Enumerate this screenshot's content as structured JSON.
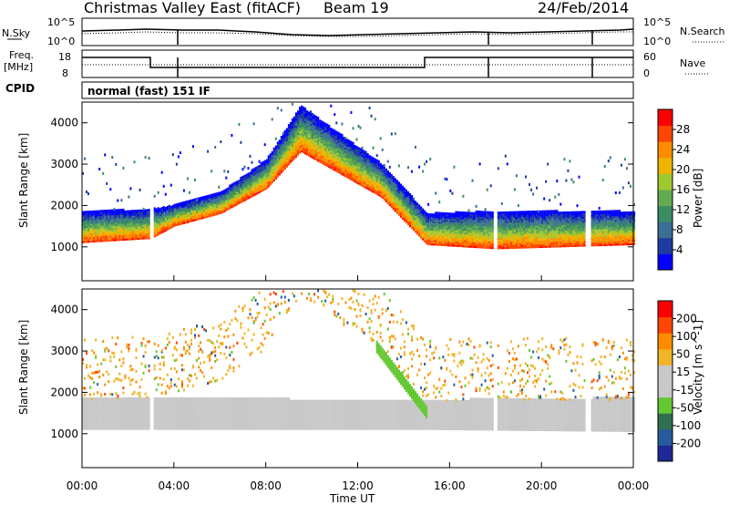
{
  "header": {
    "site": "Christmas Valley East (fitACF)",
    "beam": "Beam 19",
    "date": "24/Feb/2014",
    "cpid_label": "CPID",
    "mode": "normal (fast) 151 IF"
  },
  "top_panels": {
    "nsky_label": "N.Sky",
    "nsky_ticks": [
      "10^5",
      "10^0"
    ],
    "nsearch_label": "N.Search",
    "nsearch_ticks": [
      "10^5",
      "10^0"
    ],
    "freq_label_1": "Freq.",
    "freq_label_2": "[MHz]",
    "freq_ticks": [
      "18",
      "8"
    ],
    "nave_label": "Nave",
    "nave_ticks": [
      "60",
      "0"
    ]
  },
  "colors": {
    "power": [
      "#0000ff",
      "#1e3ca0",
      "#3c6e96",
      "#3c8c64",
      "#64aa50",
      "#a0c832",
      "#f0b400",
      "#ff8c00",
      "#ff4600",
      "#ff0000"
    ],
    "velocity": [
      "#1e2896",
      "#285aa0",
      "#326e50",
      "#64c832",
      "#c8c8c8",
      "#c8c8c8",
      "#f0b428",
      "#ff8c00",
      "#ff4600",
      "#ff0000"
    ]
  },
  "chart_data": [
    {
      "type": "heatmap",
      "title": "",
      "xlabel": "",
      "ylabel": "Slant Range [km]",
      "x_ticks": [
        "00:00",
        "04:00",
        "08:00",
        "12:00",
        "16:00",
        "20:00",
        "00:00"
      ],
      "y_ticks": [
        "1000",
        "2000",
        "3000",
        "4000"
      ],
      "ylim": [
        180,
        4500
      ],
      "colorbar": {
        "label": "Power [dB]",
        "ticks": [
          "28",
          "24",
          "20",
          "16",
          "12",
          "8",
          "4"
        ],
        "range": [
          0,
          30
        ]
      },
      "main_echo_band": [
        {
          "t": "00:00",
          "lower_km": 1100,
          "upper_km": 1850
        },
        {
          "t": "03:00",
          "lower_km": 1200,
          "upper_km": 1900
        },
        {
          "t": "04:00",
          "lower_km": 1500,
          "upper_km": 2000
        },
        {
          "t": "06:00",
          "lower_km": 1800,
          "upper_km": 2300
        },
        {
          "t": "08:00",
          "lower_km": 2400,
          "upper_km": 3100
        },
        {
          "t": "09:30",
          "lower_km": 3300,
          "upper_km": 4400
        },
        {
          "t": "13:00",
          "lower_km": 2200,
          "upper_km": 3000
        },
        {
          "t": "15:00",
          "lower_km": 1050,
          "upper_km": 1800
        },
        {
          "t": "18:00",
          "lower_km": 950,
          "upper_km": 1850
        },
        {
          "t": "24:00",
          "lower_km": 1050,
          "upper_km": 1850
        }
      ]
    },
    {
      "type": "heatmap",
      "title": "",
      "xlabel": "Time UT",
      "ylabel": "Slant Range [km]",
      "x_ticks": [
        "00:00",
        "04:00",
        "08:00",
        "12:00",
        "16:00",
        "20:00",
        "00:00"
      ],
      "y_ticks": [
        "1000",
        "2000",
        "3000",
        "4000"
      ],
      "ylim": [
        180,
        4500
      ],
      "colorbar": {
        "label": "Velocity [m s^-1]",
        "ticks": [
          "200",
          "100",
          "50",
          "15",
          "-15",
          "-50",
          "-100",
          "-200"
        ],
        "range": [
          -250,
          250
        ]
      },
      "ground_scatter_band": [
        {
          "t": "00:00",
          "lower_km": 1100,
          "upper_km": 1850
        },
        {
          "t": "15:00",
          "lower_km": 1100,
          "upper_km": 1800
        },
        {
          "t": "24:00",
          "lower_km": 1050,
          "upper_km": 1850
        }
      ]
    }
  ]
}
